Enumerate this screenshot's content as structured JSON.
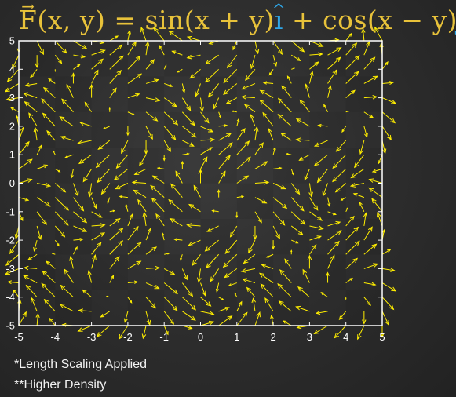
{
  "title": {
    "prefix": "F",
    "args": "(x, y) = sin(x + y)",
    "i_hat": "ı",
    "middle": " + cos(x − y)",
    "j_hat": "ȷ"
  },
  "notes": {
    "note1": "*Length Scaling Applied",
    "note2": "**Higher Density"
  },
  "colors": {
    "arrow": "#ffee00",
    "axis": "#ffffff",
    "title": "#e8c23a",
    "unit_vectors": "#2fa7e8"
  },
  "chart_data": {
    "type": "quiver",
    "function": "F(x, y) = sin(x + y) i + cos(x - y) j",
    "u_expression": "sin(x + y)",
    "v_expression": "cos(x - y)",
    "grid": {
      "x": [
        -5,
        -4.5,
        -4,
        -3.5,
        -3,
        -2.5,
        -2,
        -1.5,
        -1,
        -0.5,
        0,
        0.5,
        1,
        1.5,
        2,
        2.5,
        3,
        3.5,
        4,
        4.5,
        5
      ],
      "y": [
        -5,
        -4.5,
        -4,
        -3.5,
        -3,
        -2.5,
        -2,
        -1.5,
        -1,
        -0.5,
        0,
        0.5,
        1,
        1.5,
        2,
        2.5,
        3,
        3.5,
        4,
        4.5,
        5
      ]
    },
    "xlim": [
      -5,
      5
    ],
    "ylim": [
      -5,
      5
    ],
    "xticks": [
      -5,
      -4,
      -3,
      -2,
      -1,
      0,
      1,
      2,
      3,
      4,
      5
    ],
    "yticks": [
      -5,
      -4,
      -3,
      -2,
      -1,
      0,
      1,
      2,
      3,
      4,
      5
    ],
    "xlabel": "",
    "ylabel": "",
    "grid_lines": false,
    "arrow_color": "#ffee00"
  }
}
